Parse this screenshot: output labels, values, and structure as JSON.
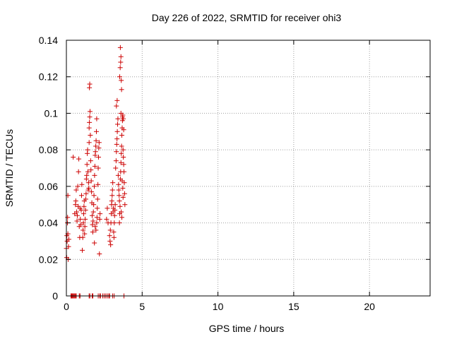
{
  "chart_data": {
    "type": "scatter",
    "title": "Day 226 of 2022, SRMTID for receiver ohi3",
    "xlabel": "GPS time / hours",
    "ylabel": "SRMTID / TECUs",
    "xlim": [
      0,
      24
    ],
    "ylim": [
      0,
      0.14
    ],
    "xticks": [
      0,
      5,
      10,
      15,
      20
    ],
    "xtick_labels": [
      "0",
      "5",
      "10",
      "15",
      "20"
    ],
    "yticks": [
      0,
      0.02,
      0.04,
      0.06,
      0.08,
      0.1,
      0.12,
      0.14
    ],
    "ytick_labels": [
      "0",
      "0.02",
      "0.04",
      "0.06",
      "0.08",
      "0.1",
      "0.12",
      "0.14"
    ],
    "grid": true,
    "marker": "+",
    "marker_color": "#cc0000",
    "series": [
      {
        "points": [
          [
            0.0,
            0.026
          ],
          [
            0.02,
            0.021
          ],
          [
            0.03,
            0.033
          ],
          [
            0.05,
            0.03
          ],
          [
            0.07,
            0.04
          ],
          [
            0.08,
            0.043
          ],
          [
            0.1,
            0.034
          ],
          [
            0.1,
            0.055
          ],
          [
            0.12,
            0.02
          ],
          [
            0.14,
            0.027
          ],
          [
            0.16,
            0.031
          ],
          [
            0.45,
            0.076
          ],
          [
            0.55,
            0.045
          ],
          [
            0.6,
            0.05
          ],
          [
            0.62,
            0.052
          ],
          [
            0.65,
            0.058
          ],
          [
            0.68,
            0.046
          ],
          [
            0.7,
            0.041
          ],
          [
            0.72,
            0.044
          ],
          [
            0.75,
            0.06
          ],
          [
            0.78,
            0.049
          ],
          [
            0.8,
            0.068
          ],
          [
            0.82,
            0.075
          ],
          [
            0.85,
            0.038
          ],
          [
            0.88,
            0.032
          ],
          [
            0.9,
            0.048
          ],
          [
            0.92,
            0.042
          ],
          [
            0.95,
            0.039
          ],
          [
            0.98,
            0.047
          ],
          [
            1.0,
            0.055
          ],
          [
            1.02,
            0.061
          ],
          [
            1.05,
            0.025
          ],
          [
            1.08,
            0.032
          ],
          [
            1.1,
            0.036
          ],
          [
            1.12,
            0.04
          ],
          [
            1.14,
            0.045
          ],
          [
            1.16,
            0.049
          ],
          [
            1.18,
            0.052
          ],
          [
            1.2,
            0.034
          ],
          [
            1.22,
            0.038
          ],
          [
            1.24,
            0.042
          ],
          [
            1.26,
            0.047
          ],
          [
            1.28,
            0.053
          ],
          [
            1.3,
            0.056
          ],
          [
            1.32,
            0.064
          ],
          [
            1.34,
            0.066
          ],
          [
            1.36,
            0.072
          ],
          [
            1.38,
            0.078
          ],
          [
            1.4,
            0.08
          ],
          [
            1.42,
            0.068
          ],
          [
            1.44,
            0.058
          ],
          [
            1.46,
            0.062
          ],
          [
            1.48,
            0.059
          ],
          [
            1.5,
            0.084
          ],
          [
            1.5,
            0.092
          ],
          [
            1.52,
            0.095
          ],
          [
            1.54,
            0.098
          ],
          [
            1.56,
            0.101
          ],
          [
            1.52,
            0.114
          ],
          [
            1.54,
            0.116
          ],
          [
            1.58,
            0.088
          ],
          [
            1.6,
            0.074
          ],
          [
            1.62,
            0.069
          ],
          [
            1.64,
            0.063
          ],
          [
            1.66,
            0.057
          ],
          [
            1.68,
            0.051
          ],
          [
            1.7,
            0.044
          ],
          [
            1.72,
            0.039
          ],
          [
            1.74,
            0.035
          ],
          [
            1.76,
            0.041
          ],
          [
            1.78,
            0.046
          ],
          [
            1.8,
            0.05
          ],
          [
            1.82,
            0.055
          ],
          [
            1.84,
            0.06
          ],
          [
            1.86,
            0.066
          ],
          [
            1.88,
            0.071
          ],
          [
            1.9,
            0.077
          ],
          [
            1.92,
            0.079
          ],
          [
            1.94,
            0.082
          ],
          [
            1.96,
            0.085
          ],
          [
            1.98,
            0.09
          ],
          [
            2.0,
            0.097
          ],
          [
            1.85,
            0.029
          ],
          [
            1.9,
            0.038
          ],
          [
            1.95,
            0.036
          ],
          [
            2.0,
            0.04
          ],
          [
            2.02,
            0.043
          ],
          [
            2.04,
            0.048
          ],
          [
            2.06,
            0.053
          ],
          [
            2.08,
            0.061
          ],
          [
            2.1,
            0.07
          ],
          [
            2.12,
            0.076
          ],
          [
            2.14,
            0.081
          ],
          [
            2.16,
            0.084
          ],
          [
            2.18,
            0.023
          ],
          [
            2.2,
            0.042
          ],
          [
            2.22,
            0.045
          ],
          [
            2.65,
            0.042
          ],
          [
            2.7,
            0.048
          ],
          [
            2.75,
            0.04
          ],
          [
            2.85,
            0.033
          ],
          [
            2.88,
            0.03
          ],
          [
            2.9,
            0.036
          ],
          [
            2.92,
            0.028
          ],
          [
            2.94,
            0.04
          ],
          [
            2.96,
            0.045
          ],
          [
            2.98,
            0.05
          ],
          [
            3.0,
            0.052
          ],
          [
            3.02,
            0.055
          ],
          [
            3.04,
            0.058
          ],
          [
            3.06,
            0.062
          ],
          [
            3.08,
            0.046
          ],
          [
            3.1,
            0.048
          ],
          [
            3.12,
            0.035
          ],
          [
            3.14,
            0.032
          ],
          [
            3.16,
            0.04
          ],
          [
            3.18,
            0.044
          ],
          [
            3.2,
            0.047
          ],
          [
            3.22,
            0.05
          ],
          [
            3.25,
            0.07
          ],
          [
            3.28,
            0.074
          ],
          [
            3.3,
            0.079
          ],
          [
            3.32,
            0.083
          ],
          [
            3.34,
            0.086
          ],
          [
            3.36,
            0.09
          ],
          [
            3.38,
            0.094
          ],
          [
            3.4,
            0.097
          ],
          [
            3.3,
            0.104
          ],
          [
            3.35,
            0.107
          ],
          [
            3.42,
            0.066
          ],
          [
            3.44,
            0.061
          ],
          [
            3.46,
            0.058
          ],
          [
            3.48,
            0.055
          ],
          [
            3.5,
            0.052
          ],
          [
            3.5,
            0.04
          ],
          [
            3.52,
            0.045
          ],
          [
            3.54,
            0.049
          ],
          [
            3.56,
            0.064
          ],
          [
            3.58,
            0.068
          ],
          [
            3.6,
            0.073
          ],
          [
            3.62,
            0.078
          ],
          [
            3.64,
            0.082
          ],
          [
            3.66,
            0.088
          ],
          [
            3.68,
            0.092
          ],
          [
            3.7,
            0.096
          ],
          [
            3.72,
            0.099
          ],
          [
            3.74,
            0.08
          ],
          [
            3.76,
            0.076
          ],
          [
            3.78,
            0.072
          ],
          [
            3.8,
            0.068
          ],
          [
            3.82,
            0.062
          ],
          [
            3.84,
            0.056
          ],
          [
            3.86,
            0.05
          ],
          [
            3.52,
            0.12
          ],
          [
            3.55,
            0.125
          ],
          [
            3.58,
            0.128
          ],
          [
            3.6,
            0.131
          ],
          [
            3.56,
            0.136
          ],
          [
            3.62,
            0.118
          ],
          [
            3.64,
            0.113
          ],
          [
            3.6,
            0.1
          ],
          [
            3.7,
            0.098
          ],
          [
            3.75,
            0.097
          ],
          [
            3.78,
            0.091
          ],
          [
            3.68,
            0.063
          ],
          [
            3.72,
            0.059
          ],
          [
            3.74,
            0.054
          ],
          [
            3.62,
            0.046
          ],
          [
            3.66,
            0.043
          ],
          [
            0.3,
            0.0
          ],
          [
            0.35,
            0.0
          ],
          [
            0.4,
            0.0
          ],
          [
            0.45,
            0.0
          ],
          [
            0.5,
            0.0
          ],
          [
            0.55,
            0.0
          ],
          [
            0.6,
            0.0
          ],
          [
            0.65,
            0.0
          ],
          [
            0.85,
            0.0
          ],
          [
            0.9,
            0.0
          ],
          [
            1.5,
            0.0
          ],
          [
            1.55,
            0.0
          ],
          [
            1.7,
            0.0
          ],
          [
            1.75,
            0.0
          ],
          [
            2.1,
            0.0
          ],
          [
            2.2,
            0.0
          ],
          [
            2.25,
            0.0
          ],
          [
            2.4,
            0.0
          ],
          [
            2.5,
            0.0
          ],
          [
            2.6,
            0.0
          ],
          [
            2.7,
            0.0
          ],
          [
            2.8,
            0.0
          ],
          [
            2.85,
            0.0
          ],
          [
            3.05,
            0.0
          ],
          [
            3.15,
            0.0
          ],
          [
            3.8,
            0.0
          ]
        ]
      }
    ]
  }
}
